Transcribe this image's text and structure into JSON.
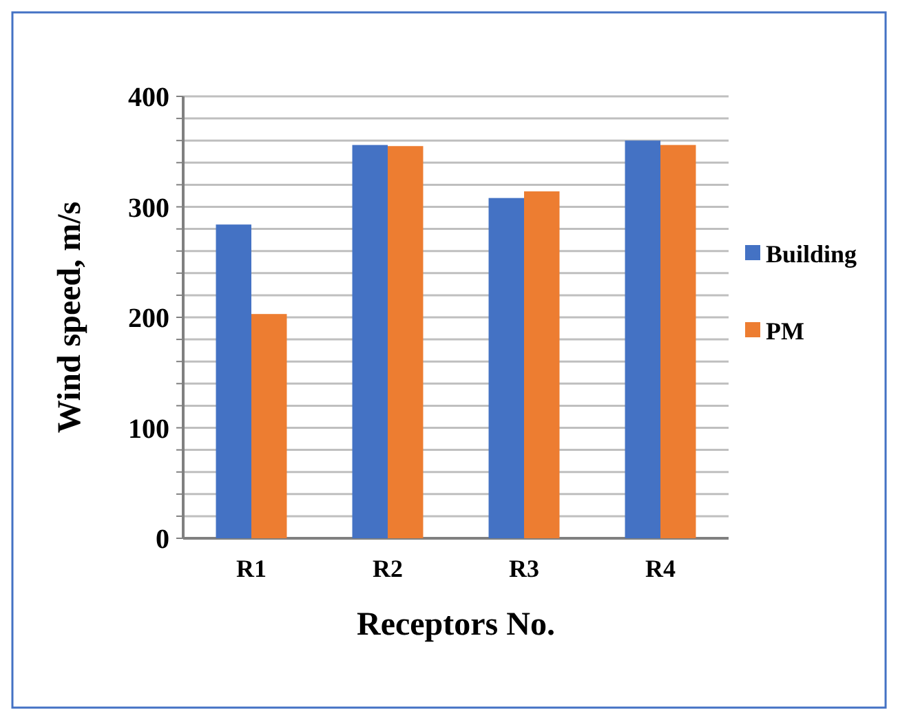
{
  "chart_data": {
    "type": "bar",
    "xlabel": "Receptors No.",
    "ylabel": "Wind speed, m/s",
    "categories": [
      "R1",
      "R2",
      "R3",
      "R4"
    ],
    "series": [
      {
        "name": "Building",
        "color": "#4472c4",
        "values": [
          284,
          356,
          308,
          360
        ]
      },
      {
        "name": "PM",
        "color": "#ed7d31",
        "values": [
          203,
          355,
          314,
          356
        ]
      }
    ],
    "ylim": [
      0,
      400
    ],
    "yticks": [
      0,
      {
        "value": 20,
        "label": null
      },
      {
        "value": 40,
        "label": null
      },
      {
        "value": 60,
        "label": null
      },
      {
        "value": 80,
        "label": null
      },
      100,
      {
        "value": 120,
        "label": null
      },
      {
        "value": 140,
        "label": null
      },
      {
        "value": 160,
        "label": null
      },
      {
        "value": 180,
        "label": null
      },
      200,
      {
        "value": 220,
        "label": null
      },
      {
        "value": 240,
        "label": null
      },
      {
        "value": 260,
        "label": null
      },
      {
        "value": 280,
        "label": null
      },
      300,
      {
        "value": 320,
        "label": null
      },
      {
        "value": 340,
        "label": null
      },
      {
        "value": 360,
        "label": null
      },
      {
        "value": 380,
        "label": null
      },
      400
    ],
    "grid": "y",
    "legend": "right"
  }
}
